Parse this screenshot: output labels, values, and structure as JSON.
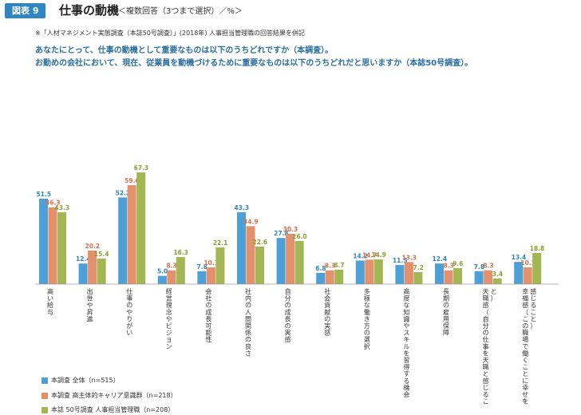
{
  "header": {
    "badge": "図表 9",
    "title": "仕事の動機",
    "subtitle": "＜複数回答（3つまで選択）／%＞"
  },
  "note": "※「人材マネジメント実態調査（本誌50号調査）」(2018年) 人事担当管理職の回答結果を併記",
  "questions": [
    "あなたにとって、仕事の動機として重要なものは以下のうちどれですか（本調査）。",
    "お勤めの会社において、現在、従業員を動機づけるために重要なものは以下のうちどれだと思いますか（本誌50号調査）。"
  ],
  "colors": {
    "blue": "#4d9fd6",
    "orange": "#e3906c",
    "green": "#a2b653",
    "blue_label": "#2e86c1",
    "orange_label": "#d8714a",
    "green_label": "#8aa033"
  },
  "chart_data": {
    "type": "bar",
    "categories": [
      "高い給与",
      "出世や昇進",
      "仕事のやりがい",
      "経営理念やビジョン",
      "会社の成長可能性",
      "社内の人間関係の良さ",
      "自分の成長の実感",
      "社会貢献の実感",
      "多様な働き方の選択",
      "高度な知識やスキルを習得する機会",
      "長期の雇用保障",
      "天職感（自分の仕事を天職と感じること）",
      "幸福感（この職場で働くことに幸せを感じること）"
    ],
    "series": [
      {
        "name": "本調査 全体（n=515）",
        "values": [
          51.5,
          12.4,
          52.2,
          5.0,
          7.8,
          43.3,
          27.8,
          6.8,
          14.2,
          11.5,
          12.4,
          7.8,
          13.4
        ]
      },
      {
        "name": "本調査 高主体的キャリア意識群（n=218）",
        "values": [
          46.3,
          20.2,
          59.6,
          8.3,
          10.1,
          34.9,
          30.3,
          8.3,
          14.7,
          13.3,
          8.3,
          8.3,
          10.1
        ]
      },
      {
        "name": "本誌 50号調査 人事担当管理職（n=208）",
        "values": [
          43.3,
          15.4,
          67.3,
          16.3,
          22.1,
          22.6,
          26.0,
          8.7,
          14.9,
          7.2,
          9.6,
          3.4,
          18.8
        ]
      }
    ],
    "ylim": [
      0,
      70
    ]
  }
}
